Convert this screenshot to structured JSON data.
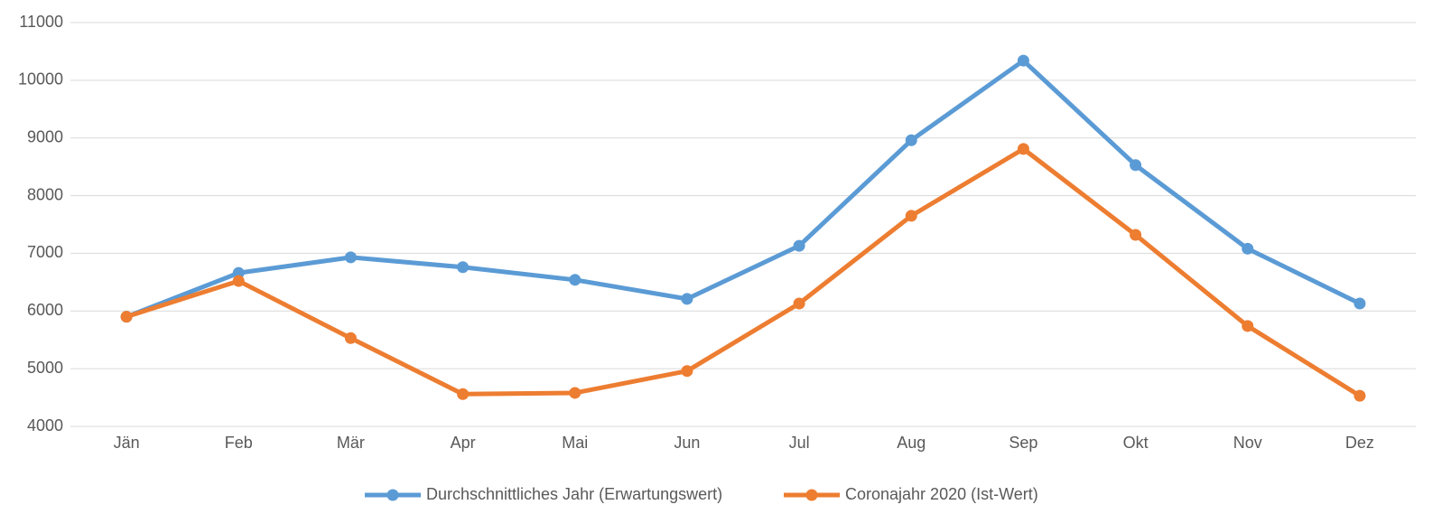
{
  "chart_data": {
    "type": "line",
    "categories": [
      "Jän",
      "Feb",
      "Mär",
      "Apr",
      "Mai",
      "Jun",
      "Jul",
      "Aug",
      "Sep",
      "Okt",
      "Nov",
      "Dez"
    ],
    "series": [
      {
        "name": "Durchschnittliches Jahr (Erwartungswert)",
        "color": "#5b9bd5",
        "values": [
          5900,
          6660,
          6930,
          6760,
          6540,
          6210,
          7130,
          8960,
          10340,
          8530,
          7080,
          6130
        ]
      },
      {
        "name": "Coronajahr 2020 (Ist-Wert)",
        "color": "#ed7d31",
        "values": [
          5900,
          6520,
          5530,
          4560,
          4580,
          4960,
          6130,
          7650,
          8810,
          7320,
          5740,
          4530
        ]
      }
    ],
    "ylim": [
      4000,
      11000
    ],
    "yticks": [
      4000,
      5000,
      6000,
      7000,
      8000,
      9000,
      10000,
      11000
    ],
    "grid": true,
    "legend": "bottom"
  }
}
